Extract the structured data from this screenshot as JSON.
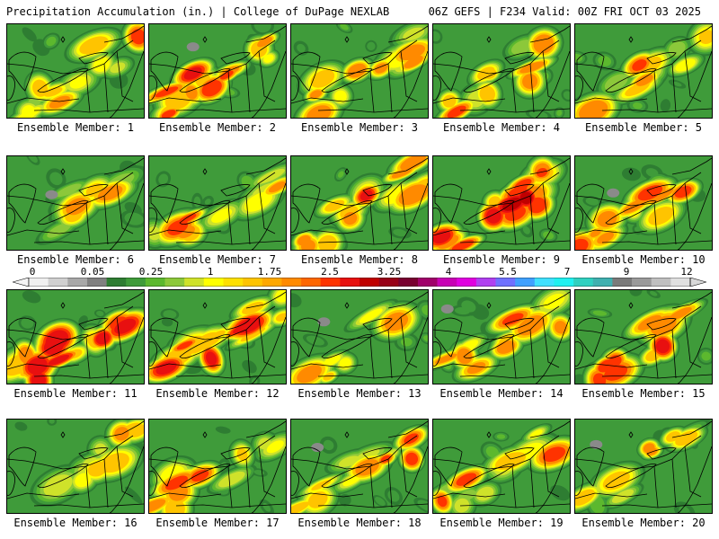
{
  "header": {
    "left": "Precipitation Accumulation (in.) | College of DuPage NEXLAB",
    "right": "06Z GEFS | F234 Valid: 00Z FRI OCT 03 2025"
  },
  "colorbar": {
    "labels": [
      "0",
      "0.05",
      "0.25",
      "1",
      "1.75",
      "2.5",
      "3.25",
      "4",
      "5.5",
      "7",
      "9",
      "12"
    ],
    "colors": [
      "#f0f0f0",
      "#d0d0d0",
      "#a8a8a8",
      "#808080",
      "#2e7d32",
      "#3f9b3a",
      "#5cb82e",
      "#8cc83a",
      "#cfe22a",
      "#ffff00",
      "#ffe000",
      "#ffc400",
      "#ffa800",
      "#ff8a00",
      "#ff6600",
      "#ff3300",
      "#e81010",
      "#c00000",
      "#980018",
      "#780030",
      "#a0006a",
      "#c800b4",
      "#e000e0",
      "#b040f0",
      "#7070ff",
      "#40a0ff",
      "#40e0ff",
      "#20f0f0",
      "#30d0c0",
      "#40b0b0",
      "#7a7a7a",
      "#9a9a9a",
      "#c0c0c0",
      "#e0e0e0"
    ]
  },
  "members": [
    {
      "label": "Ensemble Member: 1",
      "intensity": 1
    },
    {
      "label": "Ensemble Member: 2",
      "intensity": 2
    },
    {
      "label": "Ensemble Member: 3",
      "intensity": 1
    },
    {
      "label": "Ensemble Member: 4",
      "intensity": 1
    },
    {
      "label": "Ensemble Member: 5",
      "intensity": 1
    },
    {
      "label": "Ensemble Member: 6",
      "intensity": 0
    },
    {
      "label": "Ensemble Member: 7",
      "intensity": 1
    },
    {
      "label": "Ensemble Member: 8",
      "intensity": 2
    },
    {
      "label": "Ensemble Member: 9",
      "intensity": 3
    },
    {
      "label": "Ensemble Member: 10",
      "intensity": 1
    },
    {
      "label": "Ensemble Member: 11",
      "intensity": 3
    },
    {
      "label": "Ensemble Member: 12",
      "intensity": 2
    },
    {
      "label": "Ensemble Member: 13",
      "intensity": 0
    },
    {
      "label": "Ensemble Member: 14",
      "intensity": 1
    },
    {
      "label": "Ensemble Member: 15",
      "intensity": 2
    },
    {
      "label": "Ensemble Member: 16",
      "intensity": 1
    },
    {
      "label": "Ensemble Member: 17",
      "intensity": 1
    },
    {
      "label": "Ensemble Member: 18",
      "intensity": 1
    },
    {
      "label": "Ensemble Member: 19",
      "intensity": 1
    },
    {
      "label": "Ensemble Member: 20",
      "intensity": 0
    }
  ]
}
